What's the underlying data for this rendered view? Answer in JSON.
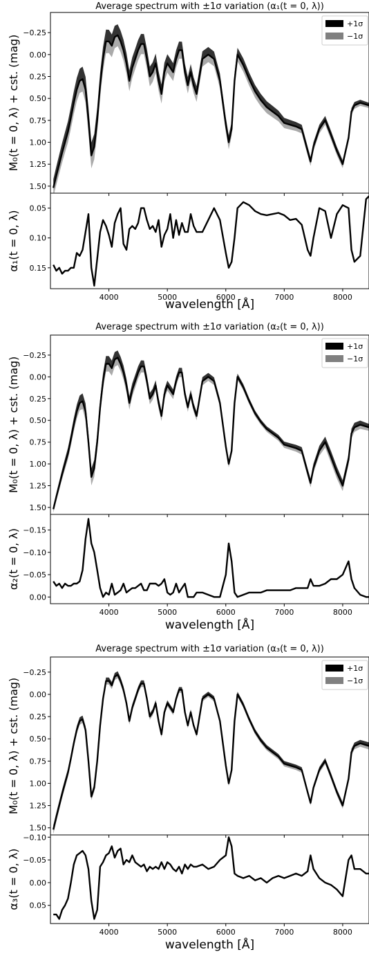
{
  "chart_data": [
    {
      "type": "line",
      "component": "alpha1",
      "title": "Average spectrum with ±1σ variation (α₁(t = 0, λ))",
      "top": {
        "ylabel": "M₀(t = 0, λ) + cst. (mag)",
        "ylim": [
          1.58,
          -0.48
        ],
        "yticks": [
          -0.25,
          0.0,
          0.25,
          0.5,
          0.75,
          1.0,
          1.25,
          1.5
        ],
        "ytick_labels": [
          "−0.25",
          "0.00",
          "0.25",
          "0.50",
          "0.75",
          "1.00",
          "1.25",
          "1.50"
        ],
        "legend": {
          "placement": "top-right",
          "entries": [
            "+1σ",
            "−1σ"
          ]
        },
        "legend_colors": {
          "plus": "#000000",
          "minus": "#808080"
        },
        "band_width": [
          0.1,
          0.15,
          0.12,
          0.11,
          0.09,
          0.08,
          0.07,
          0.05,
          0.05,
          0.03
        ],
        "bands": {
          "plus_color": "#333333",
          "minus_color": "#aaaaaa"
        }
      },
      "bottom": {
        "ylabel": "α₁(t = 0, λ)",
        "ylim": [
          0.185,
          0.025
        ],
        "yticks": [
          0.05,
          0.1,
          0.15
        ],
        "ytick_labels": [
          "0.05",
          "0.10",
          "0.15"
        ],
        "x": [
          3050,
          3100,
          3150,
          3200,
          3250,
          3300,
          3350,
          3400,
          3450,
          3500,
          3550,
          3600,
          3650,
          3700,
          3750,
          3800,
          3850,
          3900,
          3950,
          4000,
          4050,
          4100,
          4150,
          4200,
          4250,
          4300,
          4350,
          4400,
          4450,
          4500,
          4550,
          4600,
          4650,
          4700,
          4750,
          4800,
          4850,
          4900,
          4950,
          5000,
          5050,
          5100,
          5150,
          5200,
          5250,
          5300,
          5350,
          5400,
          5450,
          5500,
          5600,
          5700,
          5800,
          5900,
          6000,
          6050,
          6100,
          6150,
          6200,
          6300,
          6400,
          6500,
          6600,
          6700,
          6800,
          6900,
          7000,
          7100,
          7200,
          7300,
          7400,
          7450,
          7500,
          7600,
          7700,
          7800,
          7900,
          8000,
          8100,
          8150,
          8200,
          8300,
          8400,
          8450
        ],
        "y": [
          0.145,
          0.155,
          0.15,
          0.16,
          0.155,
          0.155,
          0.15,
          0.15,
          0.125,
          0.13,
          0.12,
          0.09,
          0.06,
          0.15,
          0.18,
          0.135,
          0.09,
          0.07,
          0.08,
          0.095,
          0.115,
          0.075,
          0.06,
          0.05,
          0.11,
          0.12,
          0.085,
          0.08,
          0.085,
          0.075,
          0.05,
          0.05,
          0.07,
          0.085,
          0.08,
          0.09,
          0.07,
          0.115,
          0.095,
          0.085,
          0.06,
          0.1,
          0.07,
          0.095,
          0.075,
          0.09,
          0.09,
          0.06,
          0.08,
          0.09,
          0.09,
          0.07,
          0.05,
          0.07,
          0.125,
          0.15,
          0.14,
          0.1,
          0.05,
          0.04,
          0.045,
          0.055,
          0.06,
          0.062,
          0.06,
          0.058,
          0.062,
          0.07,
          0.068,
          0.078,
          0.12,
          0.13,
          0.1,
          0.05,
          0.055,
          0.1,
          0.06,
          0.045,
          0.05,
          0.12,
          0.14,
          0.13,
          0.035,
          0.03
        ],
        "xlabel": "wavelength [Å]",
        "xlim": [
          3000,
          8450
        ],
        "xticks": [
          4000,
          5000,
          6000,
          7000,
          8000
        ],
        "xtick_labels": [
          "4000",
          "5000",
          "6000",
          "7000",
          "8000"
        ]
      }
    },
    {
      "type": "line",
      "component": "alpha2",
      "title": "Average spectrum with ±1σ variation (α₂(t = 0, λ))",
      "top": {
        "ylabel": "M₀(t = 0, λ) + cst. (mag)",
        "ylim": [
          1.58,
          -0.48
        ],
        "yticks": [
          -0.25,
          0.0,
          0.25,
          0.5,
          0.75,
          1.0,
          1.25,
          1.5
        ],
        "ytick_labels": [
          "−0.25",
          "0.00",
          "0.25",
          "0.50",
          "0.75",
          "1.00",
          "1.25",
          "1.50"
        ],
        "legend": {
          "placement": "top-right",
          "entries": [
            "+1σ",
            "−1σ"
          ]
        },
        "legend_colors": {
          "plus": "#000000",
          "minus": "#808080"
        },
        "band_width": [
          0.04,
          0.1,
          0.08,
          0.06,
          0.05,
          0.04,
          0.03,
          0.04,
          0.07,
          0.04
        ],
        "bands": {
          "plus_color": "#333333",
          "minus_color": "#aaaaaa"
        }
      },
      "bottom": {
        "ylabel": "α₂(t = 0, λ)",
        "ylim": [
          0.015,
          -0.185
        ],
        "yticks": [
          -0.15,
          -0.1,
          -0.05,
          0.0
        ],
        "ytick_labels": [
          "−0.15",
          "−0.10",
          "−0.05",
          "0.00"
        ],
        "x": [
          3050,
          3100,
          3150,
          3200,
          3250,
          3300,
          3350,
          3400,
          3450,
          3500,
          3550,
          3600,
          3650,
          3700,
          3750,
          3800,
          3850,
          3900,
          3950,
          4000,
          4050,
          4100,
          4150,
          4200,
          4250,
          4300,
          4350,
          4400,
          4450,
          4500,
          4550,
          4600,
          4650,
          4700,
          4750,
          4800,
          4850,
          4900,
          4950,
          5000,
          5050,
          5100,
          5150,
          5200,
          5250,
          5300,
          5350,
          5400,
          5450,
          5500,
          5600,
          5700,
          5800,
          5900,
          6000,
          6050,
          6100,
          6150,
          6200,
          6300,
          6400,
          6500,
          6600,
          6700,
          6800,
          6900,
          7000,
          7100,
          7200,
          7300,
          7400,
          7450,
          7500,
          7600,
          7700,
          7800,
          7900,
          8000,
          8100,
          8150,
          8200,
          8300,
          8400,
          8450
        ],
        "y": [
          -0.035,
          -0.025,
          -0.03,
          -0.02,
          -0.03,
          -0.025,
          -0.025,
          -0.03,
          -0.03,
          -0.035,
          -0.06,
          -0.13,
          -0.175,
          -0.12,
          -0.1,
          -0.06,
          -0.02,
          0.0,
          -0.01,
          -0.005,
          -0.03,
          -0.005,
          -0.01,
          -0.015,
          -0.03,
          -0.01,
          -0.015,
          -0.02,
          -0.02,
          -0.025,
          -0.03,
          -0.015,
          -0.015,
          -0.03,
          -0.03,
          -0.03,
          -0.025,
          -0.03,
          -0.04,
          -0.01,
          -0.005,
          -0.01,
          -0.03,
          -0.01,
          -0.02,
          -0.03,
          0.0,
          0.0,
          0.0,
          -0.01,
          -0.01,
          -0.005,
          0.0,
          0.0,
          -0.05,
          -0.12,
          -0.08,
          -0.01,
          0.0,
          -0.005,
          -0.01,
          -0.01,
          -0.01,
          -0.015,
          -0.015,
          -0.015,
          -0.015,
          -0.015,
          -0.02,
          -0.02,
          -0.02,
          -0.04,
          -0.025,
          -0.025,
          -0.03,
          -0.04,
          -0.04,
          -0.05,
          -0.08,
          -0.04,
          -0.02,
          -0.005,
          0.0,
          0.0
        ],
        "xlabel": "wavelength [Å]",
        "xlim": [
          3000,
          8450
        ],
        "xticks": [
          4000,
          5000,
          6000,
          7000,
          8000
        ],
        "xtick_labels": [
          "4000",
          "5000",
          "6000",
          "7000",
          "8000"
        ]
      }
    },
    {
      "type": "line",
      "component": "alpha3",
      "title": "Average spectrum with ±1σ variation (α₃(t = 0, λ))",
      "top": {
        "ylabel": "M₀(t = 0, λ) + cst. (mag)",
        "ylim": [
          1.58,
          -0.42
        ],
        "yticks": [
          -0.25,
          0.0,
          0.25,
          0.5,
          0.75,
          1.0,
          1.25,
          1.5
        ],
        "ytick_labels": [
          "−0.25",
          "0.00",
          "0.25",
          "0.50",
          "0.75",
          "1.00",
          "1.25",
          "1.50"
        ],
        "legend": {
          "placement": "top-right",
          "entries": [
            "+1σ",
            "−1σ"
          ]
        },
        "legend_colors": {
          "plus": "#000000",
          "minus": "#808080"
        },
        "band_width": [
          0.05,
          0.04,
          0.04,
          0.035,
          0.03,
          0.03,
          0.03,
          0.03,
          0.035,
          0.04
        ],
        "bands": {
          "plus_color": "#333333",
          "minus_color": "#aaaaaa"
        }
      },
      "bottom": {
        "ylabel": "α₃(t = 0, λ)",
        "ylim": [
          0.09,
          -0.105
        ],
        "yticks": [
          -0.1,
          -0.05,
          0.0,
          0.05
        ],
        "ytick_labels": [
          "−0.10",
          "−0.05",
          "0.00",
          "0.05"
        ],
        "x": [
          3050,
          3100,
          3150,
          3200,
          3250,
          3300,
          3350,
          3400,
          3450,
          3500,
          3550,
          3600,
          3650,
          3700,
          3750,
          3800,
          3850,
          3900,
          3950,
          4000,
          4050,
          4100,
          4150,
          4200,
          4250,
          4300,
          4350,
          4400,
          4450,
          4500,
          4550,
          4600,
          4650,
          4700,
          4750,
          4800,
          4850,
          4900,
          4950,
          5000,
          5050,
          5100,
          5150,
          5200,
          5250,
          5300,
          5350,
          5400,
          5450,
          5500,
          5600,
          5700,
          5800,
          5900,
          6000,
          6050,
          6100,
          6150,
          6200,
          6300,
          6400,
          6500,
          6600,
          6700,
          6800,
          6900,
          7000,
          7100,
          7200,
          7300,
          7400,
          7450,
          7500,
          7600,
          7700,
          7800,
          7900,
          8000,
          8100,
          8150,
          8200,
          8300,
          8400,
          8450
        ],
        "y": [
          0.07,
          0.07,
          0.08,
          0.06,
          0.05,
          0.035,
          0.0,
          -0.04,
          -0.06,
          -0.065,
          -0.07,
          -0.06,
          -0.03,
          0.04,
          0.08,
          0.06,
          -0.035,
          -0.045,
          -0.06,
          -0.065,
          -0.08,
          -0.055,
          -0.07,
          -0.075,
          -0.04,
          -0.05,
          -0.045,
          -0.06,
          -0.045,
          -0.04,
          -0.035,
          -0.04,
          -0.025,
          -0.035,
          -0.03,
          -0.035,
          -0.03,
          -0.045,
          -0.03,
          -0.045,
          -0.04,
          -0.03,
          -0.025,
          -0.035,
          -0.02,
          -0.04,
          -0.03,
          -0.04,
          -0.035,
          -0.035,
          -0.04,
          -0.03,
          -0.035,
          -0.05,
          -0.06,
          -0.1,
          -0.08,
          -0.02,
          -0.015,
          -0.01,
          -0.015,
          -0.005,
          -0.01,
          -0.0,
          -0.01,
          -0.015,
          -0.01,
          -0.015,
          -0.02,
          -0.015,
          -0.025,
          -0.06,
          -0.03,
          -0.01,
          0.0,
          0.005,
          0.015,
          0.03,
          -0.05,
          -0.06,
          -0.03,
          -0.03,
          -0.02,
          -0.02
        ],
        "xlabel": "wavelength [Å]",
        "xlim": [
          3000,
          8450
        ],
        "xticks": [
          4000,
          5000,
          6000,
          7000,
          8000
        ],
        "xtick_labels": [
          "4000",
          "5000",
          "6000",
          "7000",
          "8000"
        ]
      }
    }
  ],
  "mean_spectrum": {
    "x": [
      3050,
      3100,
      3150,
      3200,
      3250,
      3300,
      3350,
      3400,
      3450,
      3500,
      3550,
      3600,
      3650,
      3700,
      3750,
      3800,
      3850,
      3900,
      3950,
      4000,
      4050,
      4100,
      4150,
      4200,
      4250,
      4300,
      4350,
      4400,
      4450,
      4500,
      4550,
      4600,
      4650,
      4700,
      4750,
      4800,
      4850,
      4900,
      4950,
      5000,
      5050,
      5100,
      5150,
      5200,
      5250,
      5300,
      5350,
      5400,
      5450,
      5500,
      5600,
      5700,
      5800,
      5900,
      6000,
      6050,
      6100,
      6150,
      6200,
      6300,
      6400,
      6500,
      6600,
      6700,
      6800,
      6900,
      7000,
      7100,
      7200,
      7300,
      7400,
      7450,
      7500,
      7600,
      7700,
      7800,
      7900,
      8000,
      8100,
      8150,
      8200,
      8300,
      8400,
      8450
    ],
    "y": [
      1.52,
      1.38,
      1.25,
      1.12,
      1.0,
      0.88,
      0.72,
      0.55,
      0.4,
      0.3,
      0.28,
      0.4,
      0.75,
      1.15,
      1.05,
      0.75,
      0.35,
      0.05,
      -0.15,
      -0.15,
      -0.1,
      -0.2,
      -0.22,
      -0.15,
      -0.05,
      0.1,
      0.3,
      0.15,
      0.05,
      -0.05,
      -0.12,
      -0.12,
      0.05,
      0.25,
      0.2,
      0.1,
      0.3,
      0.45,
      0.2,
      0.1,
      0.15,
      0.2,
      0.05,
      -0.05,
      -0.05,
      0.2,
      0.35,
      0.2,
      0.35,
      0.45,
      0.05,
      0.0,
      0.05,
      0.3,
      0.8,
      1.0,
      0.85,
      0.3,
      0.0,
      0.12,
      0.28,
      0.42,
      0.52,
      0.6,
      0.65,
      0.7,
      0.78,
      0.8,
      0.82,
      0.85,
      1.1,
      1.22,
      1.05,
      0.85,
      0.75,
      0.92,
      1.1,
      1.25,
      0.95,
      0.65,
      0.58,
      0.55,
      0.57,
      0.58
    ]
  }
}
